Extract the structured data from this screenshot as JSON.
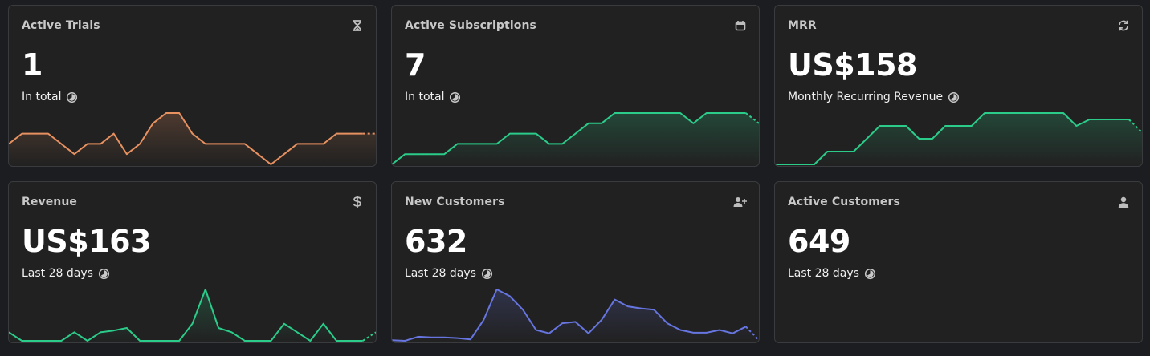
{
  "cards": [
    {
      "id": "active-trials",
      "title": "Active Trials",
      "icon": "hourglass-icon",
      "value": "1",
      "subtitle": "In total",
      "color": "#e89160",
      "series": [
        1.5,
        2.5,
        2.5,
        2.5,
        1.5,
        0.5,
        1.5,
        1.5,
        2.5,
        0.5,
        1.5,
        3.5,
        4.5,
        4.5,
        2.5,
        1.5,
        1.5,
        1.5,
        1.5,
        0.5,
        -0.5,
        0.5,
        1.5,
        1.5,
        1.5,
        2.5,
        2.5,
        2.5,
        2.5
      ]
    },
    {
      "id": "active-subscriptions",
      "title": "Active Subscriptions",
      "icon": "calendar-icon",
      "value": "7",
      "subtitle": "In total",
      "color": "#2bcc8a",
      "series": [
        0,
        1,
        1,
        1,
        1,
        2,
        2,
        2,
        2,
        3,
        3,
        3,
        2,
        2,
        3,
        4,
        4,
        5,
        5,
        5,
        5,
        5,
        5,
        4,
        5,
        5,
        5,
        5,
        4
      ]
    },
    {
      "id": "mrr",
      "title": "MRR",
      "icon": "refresh-icon",
      "value": "US$158",
      "subtitle": "Monthly Recurring Revenue",
      "color": "#2bcc8a",
      "series": [
        0,
        0,
        0,
        0,
        1,
        1,
        1,
        2,
        3,
        3,
        3,
        2,
        2,
        3,
        3,
        3,
        4,
        4,
        4,
        4,
        4,
        4,
        4,
        3,
        3.5,
        3.5,
        3.5,
        3.5,
        2.5
      ]
    },
    {
      "id": "revenue",
      "title": "Revenue",
      "icon": "dollar-icon",
      "value": "US$163",
      "subtitle": "Last 28 days",
      "color": "#2bcc8a",
      "series": [
        1,
        0,
        0,
        0,
        0,
        1,
        0,
        1,
        1.2,
        1.5,
        0,
        0,
        0,
        0,
        2,
        6,
        1.5,
        1,
        0,
        0,
        0,
        2,
        1,
        0,
        2,
        0,
        0,
        0,
        1
      ]
    },
    {
      "id": "new-customers",
      "title": "New Customers",
      "icon": "user-plus-icon",
      "value": "632",
      "subtitle": "Last 28 days",
      "color": "#6675e0",
      "series": [
        0.5,
        0.4,
        1,
        0.9,
        0.9,
        0.8,
        0.6,
        3.5,
        8,
        7,
        5,
        2,
        1.5,
        3,
        3.2,
        1.5,
        3.5,
        6.5,
        5.5,
        5.2,
        5,
        3,
        2,
        1.6,
        1.6,
        2,
        1.5,
        2.5,
        0.5
      ]
    },
    {
      "id": "active-customers",
      "title": "Active Customers",
      "icon": "user-icon",
      "value": "649",
      "subtitle": "Last 28 days",
      "color": "#6675e0",
      "series": []
    }
  ]
}
